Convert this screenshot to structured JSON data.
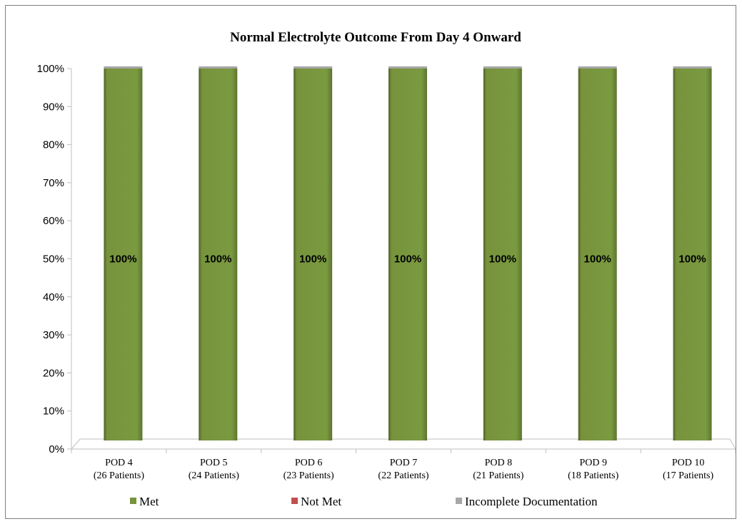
{
  "chart_data": {
    "type": "bar",
    "stacked": true,
    "title": "Normal Electrolyte Outcome From Day 4 Onward",
    "categories": [
      "POD 4",
      "POD 5",
      "POD 6",
      "POD 7",
      "POD 8",
      "POD 9",
      "POD 10"
    ],
    "category_sublabels": [
      "(26 Patients)",
      "(24 Patients)",
      "(23 Patients)",
      "(22 Patients)",
      "(21 Patients)",
      "(18 Patients)",
      "(17 Patients)"
    ],
    "series": [
      {
        "name": "Met",
        "color": "#77933c",
        "values": [
          100,
          100,
          100,
          100,
          100,
          100,
          100
        ]
      },
      {
        "name": "Not Met",
        "color": "#c0504d",
        "values": [
          0,
          0,
          0,
          0,
          0,
          0,
          0
        ]
      },
      {
        "name": "Incomplete Documentation",
        "color": "#a6a6a6",
        "values": [
          0,
          0,
          0,
          0,
          0,
          0,
          0
        ]
      }
    ],
    "data_labels": [
      "100%",
      "100%",
      "100%",
      "100%",
      "100%",
      "100%",
      "100%"
    ],
    "ylim": [
      0,
      100
    ],
    "yticks": [
      "0%",
      "10%",
      "20%",
      "30%",
      "40%",
      "50%",
      "60%",
      "70%",
      "80%",
      "90%",
      "100%"
    ],
    "xlabel": "",
    "ylabel": "",
    "grid": false,
    "legend_position": "bottom"
  }
}
